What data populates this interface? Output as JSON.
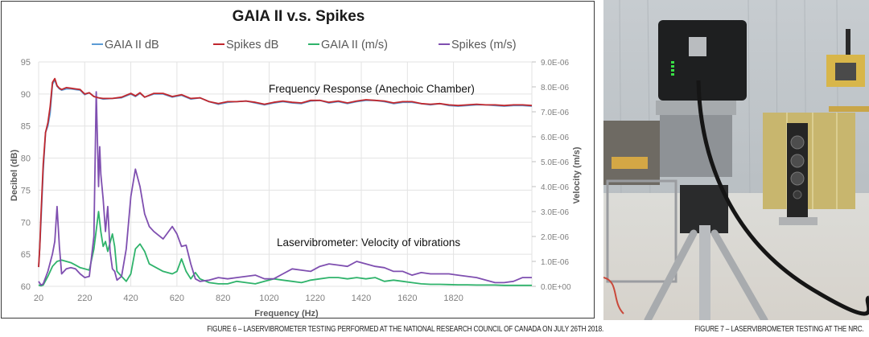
{
  "chart_data": {
    "type": "line",
    "title": "GAIA II v.s. Spikes",
    "xlabel": "Frequency (Hz)",
    "ylabel": "Decibel (dB)",
    "y2label": "Velocity (m/s)",
    "xlim": [
      20,
      2160
    ],
    "ylim": [
      60,
      95
    ],
    "y2lim": [
      0,
      9e-06
    ],
    "grid": true,
    "legend_position": "top-center",
    "xticks": [
      "20",
      "220",
      "420",
      "620",
      "820",
      "1020",
      "1220",
      "1420",
      "1620",
      "1820"
    ],
    "xtick_values": [
      20,
      220,
      420,
      620,
      820,
      1020,
      1220,
      1420,
      1620,
      1820
    ],
    "yticks": [
      "60",
      "65",
      "70",
      "75",
      "80",
      "85",
      "90",
      "95"
    ],
    "ytick_values": [
      60,
      65,
      70,
      75,
      80,
      85,
      90,
      95
    ],
    "y2ticks": [
      "0.0E+00",
      "1.0E-06",
      "2.0E-06",
      "3.0E-06",
      "4.0E-06",
      "5.0E-06",
      "6.0E-06",
      "7.0E-06",
      "8.0E-06",
      "9.0E-06"
    ],
    "y2tick_values": [
      0,
      1e-06,
      2e-06,
      3e-06,
      4e-06,
      5e-06,
      6e-06,
      7e-06,
      8e-06,
      9e-06
    ],
    "annotations": [
      "Frequency Response  (Anechoic Chamber)",
      "Laservibrometer: Velocity of vibrations"
    ],
    "series": [
      {
        "name": "GAIA II dB",
        "color": "#5b9bd5",
        "axis": "left",
        "x": [
          20,
          25,
          30,
          40,
          50,
          60,
          70,
          80,
          90,
          100,
          110,
          120,
          140,
          160,
          180,
          200,
          220,
          240,
          260,
          280,
          300,
          340,
          380,
          420,
          440,
          460,
          480,
          520,
          560,
          600,
          640,
          680,
          720,
          760,
          800,
          840,
          880,
          920,
          960,
          1000,
          1040,
          1080,
          1120,
          1160,
          1200,
          1240,
          1280,
          1320,
          1360,
          1400,
          1440,
          1480,
          1520,
          1560,
          1600,
          1640,
          1680,
          1720,
          1760,
          1800,
          1840,
          1880,
          1920,
          1960,
          2000,
          2040,
          2080,
          2120,
          2160
        ],
        "values": [
          63,
          66,
          70,
          78,
          84,
          85,
          87,
          91.5,
          92.2,
          91.2,
          90.8,
          90.6,
          90.8,
          90.8,
          90.7,
          90.6,
          89.9,
          90.2,
          89.6,
          89.4,
          89.2,
          89.3,
          89.4,
          90.0,
          89.6,
          90.1,
          89.5,
          90.0,
          90.0,
          89.5,
          89.8,
          89.2,
          89.4,
          88.8,
          88.4,
          88.7,
          88.8,
          88.9,
          88.6,
          88.3,
          88.6,
          88.8,
          88.6,
          88.5,
          88.9,
          89.0,
          88.6,
          88.8,
          88.5,
          88.8,
          89.0,
          89.0,
          88.8,
          88.5,
          88.7,
          88.7,
          88.5,
          88.3,
          88.5,
          88.2,
          88.1,
          88.2,
          88.3,
          88.3,
          88.2,
          88.1,
          88.2,
          88.2,
          88.1
        ]
      },
      {
        "name": "Spikes dB",
        "color": "#c0272d",
        "axis": "left",
        "x": [
          20,
          25,
          30,
          40,
          50,
          60,
          70,
          80,
          90,
          100,
          110,
          120,
          140,
          160,
          180,
          200,
          220,
          240,
          260,
          280,
          300,
          340,
          380,
          420,
          440,
          460,
          480,
          520,
          560,
          600,
          640,
          680,
          720,
          760,
          800,
          840,
          880,
          920,
          960,
          1000,
          1040,
          1080,
          1120,
          1160,
          1200,
          1240,
          1280,
          1320,
          1360,
          1400,
          1440,
          1480,
          1520,
          1560,
          1600,
          1640,
          1680,
          1720,
          1760,
          1800,
          1840,
          1880,
          1920,
          1960,
          2000,
          2040,
          2080,
          2120,
          2160
        ],
        "values": [
          63,
          66,
          71,
          79,
          84,
          85.5,
          88,
          91.8,
          92.4,
          91.3,
          90.9,
          90.7,
          91.0,
          90.9,
          90.8,
          90.7,
          90.0,
          90.2,
          89.6,
          89.4,
          89.3,
          89.3,
          89.5,
          90.1,
          89.7,
          90.2,
          89.5,
          90.1,
          90.1,
          89.6,
          89.9,
          89.3,
          89.4,
          88.8,
          88.5,
          88.8,
          88.8,
          88.9,
          88.7,
          88.4,
          88.7,
          88.9,
          88.7,
          88.6,
          89.0,
          89.0,
          88.7,
          88.9,
          88.6,
          88.9,
          89.1,
          89.0,
          88.9,
          88.6,
          88.8,
          88.8,
          88.5,
          88.4,
          88.5,
          88.3,
          88.2,
          88.3,
          88.4,
          88.3,
          88.3,
          88.2,
          88.3,
          88.3,
          88.2
        ]
      },
      {
        "name": "GAIA II (m/s)",
        "color": "#2fb36b",
        "axis": "right",
        "x": [
          20,
          30,
          40,
          60,
          80,
          100,
          120,
          140,
          160,
          180,
          200,
          220,
          240,
          260,
          280,
          290,
          300,
          310,
          320,
          340,
          350,
          360,
          380,
          400,
          420,
          440,
          460,
          480,
          500,
          520,
          560,
          600,
          620,
          640,
          660,
          680,
          700,
          720,
          760,
          800,
          840,
          880,
          920,
          960,
          1000,
          1040,
          1080,
          1120,
          1160,
          1200,
          1240,
          1280,
          1320,
          1360,
          1400,
          1440,
          1480,
          1520,
          1560,
          1600,
          1640,
          1680,
          1720,
          1760,
          1800,
          1840,
          1880,
          1920,
          1960,
          2000,
          2040,
          2080,
          2120,
          2160
        ],
        "values": [
          5e-08,
          2e-08,
          5e-08,
          4e-07,
          8e-07,
          1e-06,
          1.05e-06,
          1e-06,
          9.5e-07,
          8.5e-07,
          7.5e-07,
          7e-07,
          6.5e-07,
          1.5e-06,
          3e-06,
          2.2e-06,
          1.6e-06,
          1.8e-06,
          1.4e-06,
          2.1e-06,
          1.6e-06,
          6e-07,
          4e-07,
          2e-07,
          5e-07,
          1.5e-06,
          1.7e-06,
          1.4e-06,
          9e-07,
          8e-07,
          6e-07,
          5e-07,
          6e-07,
          1.1e-06,
          6e-07,
          3e-07,
          5.5e-07,
          3e-07,
          1.5e-07,
          1e-07,
          1e-07,
          2e-07,
          1.5e-07,
          1e-07,
          2e-07,
          3e-07,
          2.5e-07,
          2e-07,
          1.5e-07,
          2.5e-07,
          3e-07,
          3.5e-07,
          3.5e-07,
          3e-07,
          3.5e-07,
          3e-07,
          3.5e-07,
          2e-07,
          2.5e-07,
          2e-07,
          1.5e-07,
          1e-07,
          8e-08,
          8e-08,
          7e-08,
          6e-08,
          6e-08,
          5e-08,
          5e-08,
          5e-08,
          4e-08,
          4e-08,
          4e-08,
          4e-08
        ]
      },
      {
        "name": "Spikes (m/s)",
        "color": "#7f4fb0",
        "axis": "right",
        "x": [
          20,
          30,
          40,
          60,
          80,
          90,
          100,
          110,
          120,
          140,
          160,
          180,
          200,
          220,
          240,
          260,
          270,
          280,
          285,
          290,
          300,
          310,
          320,
          330,
          340,
          350,
          360,
          380,
          400,
          420,
          440,
          460,
          480,
          500,
          520,
          560,
          600,
          620,
          640,
          660,
          680,
          700,
          720,
          760,
          800,
          840,
          880,
          920,
          960,
          1000,
          1040,
          1080,
          1120,
          1160,
          1200,
          1240,
          1280,
          1320,
          1360,
          1400,
          1440,
          1480,
          1520,
          1560,
          1600,
          1640,
          1680,
          1720,
          1760,
          1800,
          1840,
          1880,
          1920,
          1960,
          2000,
          2040,
          2080,
          2120,
          2160
        ],
        "values": [
          2e-07,
          5e-08,
          1e-07,
          6e-07,
          1.3e-06,
          1.8e-06,
          3.2e-06,
          1.6e-06,
          5e-07,
          7e-07,
          7.5e-07,
          7e-07,
          5e-07,
          3.5e-07,
          4e-07,
          2e-06,
          7.8e-06,
          4e-06,
          5.6e-06,
          4.5e-06,
          3.5e-06,
          2.2e-06,
          3.2e-06,
          1.4e-06,
          7e-07,
          6e-07,
          2.5e-07,
          4e-07,
          1.5e-06,
          3.6e-06,
          4.7e-06,
          4e-06,
          2.9e-06,
          2.4e-06,
          2.2e-06,
          1.9e-06,
          2.4e-06,
          2.1e-06,
          1.6e-06,
          1.65e-06,
          9e-07,
          3e-07,
          2e-07,
          2.5e-07,
          3.5e-07,
          3e-07,
          3.5e-07,
          4e-07,
          4.5e-07,
          3e-07,
          3e-07,
          5e-07,
          7e-07,
          6.5e-07,
          6e-07,
          8e-07,
          9e-07,
          8.5e-07,
          8e-07,
          1e-06,
          9e-07,
          8e-07,
          7.5e-07,
          6e-07,
          6e-07,
          4.5e-07,
          5.5e-07,
          5e-07,
          5e-07,
          5e-07,
          4.5e-07,
          4e-07,
          3.5e-07,
          2.5e-07,
          1.5e-07,
          1.5e-07,
          2e-07,
          3.5e-07,
          3.5e-07
        ]
      }
    ]
  },
  "captions": {
    "figure6": "FIGURE 6 – LASERVIBROMETER TESTING PERFORMED AT THE NATIONAL RESEARCH COUNCIL OF CANADA ON JULY 26TH 2018.",
    "figure7": "FIGURE 7 – LASERVIBROMETER TESTING AT THE NRC."
  },
  "photo": {
    "subject": "laservibrometer-on-tripod",
    "colors": {
      "wall": "#c9ced1",
      "floor": "#d9dad6",
      "device": "#1e1f20",
      "insulation": "#c9b66a",
      "speaker": "#262626",
      "led": "#39e046"
    }
  }
}
